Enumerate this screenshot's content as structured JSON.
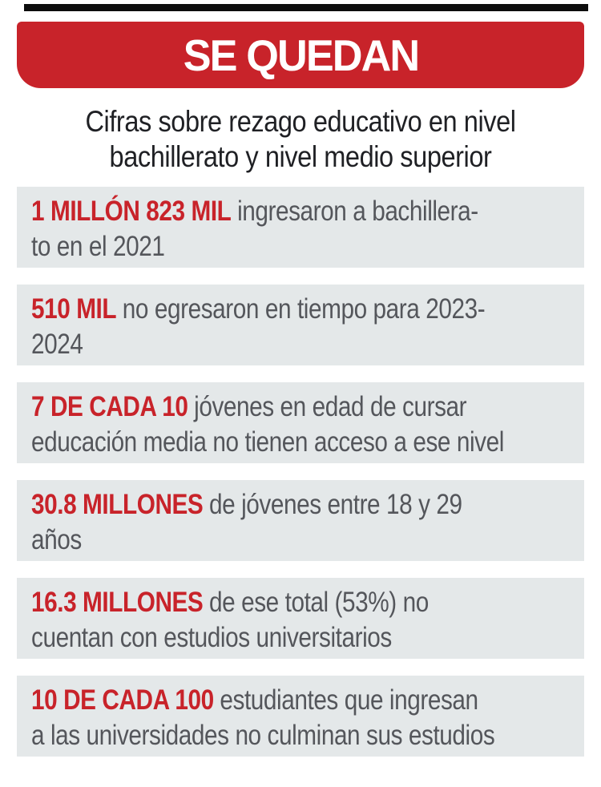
{
  "banner": {
    "title": "SE QUEDAN"
  },
  "subtitle": {
    "line1": "Cifras sobre rezago educativo en nivel",
    "line2": "bachillerato y nivel medio superior"
  },
  "colors": {
    "accent_red": "#c8232a",
    "box_background": "#e4e8e9",
    "body_text": "#54565b",
    "subtitle_text": "#1f2024",
    "top_bar": "#0d0d0d"
  },
  "rows": [
    {
      "highlight": "1 MILLÓN 823 MIL",
      "line1_rest": "ingresaron a bachillera-",
      "line2": "to en el 2021"
    },
    {
      "highlight": "510 MIL",
      "line1_rest": "no egresaron en tiempo para 2023-",
      "line2": "2024"
    },
    {
      "highlight": "7 DE CADA 10",
      "line1_rest": "jóvenes en edad de cursar",
      "line2": "educación media no tienen acceso a ese nivel"
    },
    {
      "highlight": "30.8 MILLONES",
      "line1_rest": "de jóvenes entre 18 y 29",
      "line2": "años"
    },
    {
      "highlight": "16.3 MILLONES",
      "line1_rest": "de ese total (53%) no",
      "line2": "cuentan con estudios universitarios"
    },
    {
      "highlight": "10 DE CADA 100",
      "line1_rest": "estudiantes que ingresan",
      "line2": "a las universidades no culminan sus estudios"
    }
  ]
}
